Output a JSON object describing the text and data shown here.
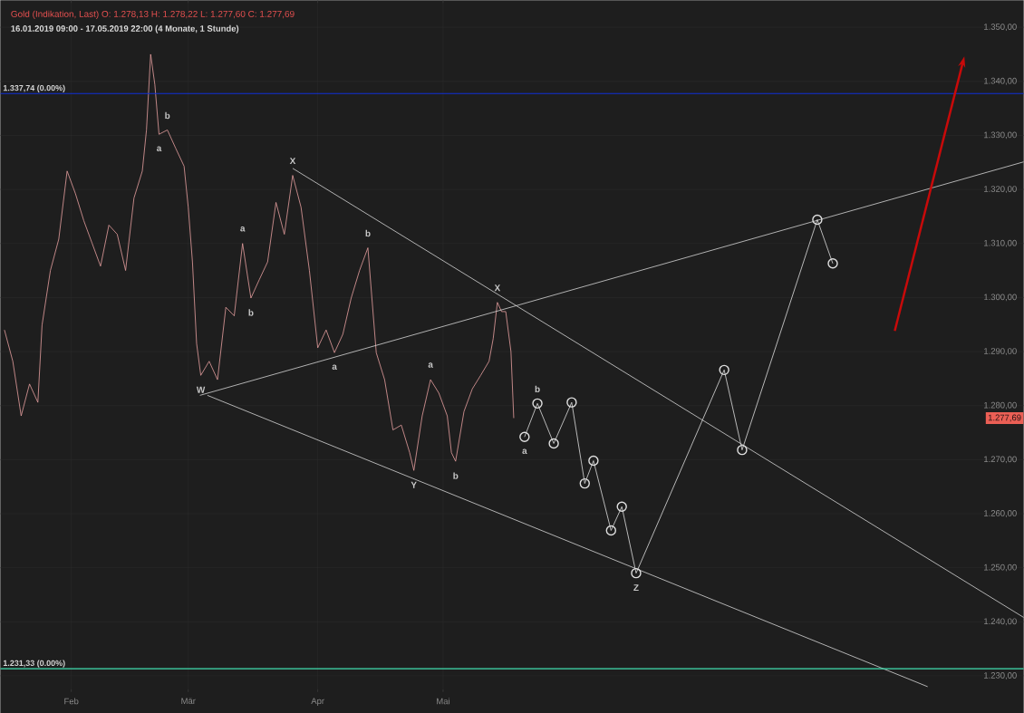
{
  "chart_data": {
    "type": "line",
    "title": "Gold (Indikation, Last)  O: 1.278,13  H: 1.278,22  L: 1.277,60  C: 1.277,69",
    "subtitle": "16.01.2019 09:00 - 17.05.2019 22:00  (4 Monate, 1 Stunde)",
    "xlim": [
      "2019-01-15",
      "2019-09-17"
    ],
    "xticks": [
      {
        "value": "2019-02-01",
        "label": "Feb"
      },
      {
        "value": "2019-03-01",
        "label": "Mär"
      },
      {
        "value": "2019-04-01",
        "label": "Apr"
      },
      {
        "value": "2019-05-01",
        "label": "Mai"
      }
    ],
    "ylim": [
      1227,
      1355
    ],
    "yticks": [
      {
        "value": 1230,
        "label": "1.230,00"
      },
      {
        "value": 1240,
        "label": "1.240,00"
      },
      {
        "value": 1250,
        "label": "1.250,00"
      },
      {
        "value": 1260,
        "label": "1.260,00"
      },
      {
        "value": 1270,
        "label": "1.270,00"
      },
      {
        "value": 1280,
        "label": "1.280,00"
      },
      {
        "value": 1290,
        "label": "1.290,00"
      },
      {
        "value": 1300,
        "label": "1.300,00"
      },
      {
        "value": 1310,
        "label": "1.310,00"
      },
      {
        "value": 1320,
        "label": "1.320,00"
      },
      {
        "value": 1330,
        "label": "1.330,00"
      },
      {
        "value": 1340,
        "label": "1.340,00"
      },
      {
        "value": 1350,
        "label": "1.350,00"
      }
    ],
    "grid": true,
    "series": [
      {
        "color": "#e8a0a0",
        "marker": "none",
        "x": [
          "2019-01-16",
          "2019-01-18",
          "2019-01-20",
          "2019-01-22",
          "2019-01-24",
          "2019-01-25",
          "2019-01-27",
          "2019-01-29",
          "2019-01-31",
          "2019-02-02",
          "2019-02-04",
          "2019-02-06",
          "2019-02-08",
          "2019-02-10",
          "2019-02-12",
          "2019-02-14",
          "2019-02-16",
          "2019-02-18",
          "2019-02-19",
          "2019-02-20",
          "2019-02-21",
          "2019-02-22",
          "2019-02-24",
          "2019-02-26",
          "2019-02-28",
          "2019-03-01",
          "2019-03-02",
          "2019-03-03",
          "2019-03-04",
          "2019-03-06",
          "2019-03-08",
          "2019-03-10",
          "2019-03-12",
          "2019-03-14",
          "2019-03-16",
          "2019-03-18",
          "2019-03-20",
          "2019-03-22",
          "2019-03-24",
          "2019-03-26",
          "2019-03-28",
          "2019-03-30",
          "2019-04-01",
          "2019-04-03",
          "2019-04-05",
          "2019-04-07",
          "2019-04-09",
          "2019-04-11",
          "2019-04-13",
          "2019-04-15",
          "2019-04-17",
          "2019-04-19",
          "2019-04-21",
          "2019-04-23",
          "2019-04-24",
          "2019-04-26",
          "2019-04-28",
          "2019-04-30",
          "2019-05-02",
          "2019-05-03",
          "2019-05-04",
          "2019-05-06",
          "2019-05-08",
          "2019-05-10",
          "2019-05-12",
          "2019-05-13",
          "2019-05-14",
          "2019-05-15",
          "2019-05-16",
          "2019-05-17T06:00",
          "2019-05-17T22:00"
        ],
        "values": [
          1294.0,
          1288.2,
          1278.1,
          1284.0,
          1280.6,
          1294.9,
          1305.0,
          1310.8,
          1323.4,
          1319.2,
          1314.2,
          1310.0,
          1305.8,
          1313.4,
          1311.7,
          1305.0,
          1318.4,
          1323.4,
          1331.0,
          1345.0,
          1339.4,
          1330.2,
          1331.0,
          1327.6,
          1324.3,
          1316.7,
          1306.6,
          1291.5,
          1285.6,
          1288.2,
          1284.8,
          1298.2,
          1296.6,
          1310.0,
          1299.9,
          1303.3,
          1306.6,
          1317.6,
          1311.7,
          1322.6,
          1316.7,
          1305.0,
          1290.7,
          1294.0,
          1289.8,
          1293.2,
          1299.9,
          1305.0,
          1309.2,
          1289.8,
          1284.8,
          1275.5,
          1276.4,
          1271.3,
          1268.0,
          1278.1,
          1284.8,
          1282.3,
          1278.1,
          1271.3,
          1269.7,
          1278.9,
          1283.1,
          1285.6,
          1288.2,
          1292.4,
          1299.1,
          1297.4,
          1297.4,
          1290.0,
          1277.69
        ]
      },
      {
        "color": "#d8d8d8",
        "marker": "none",
        "x": [
          "2019-03-03T19:00",
          "2019-09-17"
        ],
        "values": [
          1281.9,
          1325.1
        ]
      },
      {
        "color": "#d8d8d8",
        "marker": "none",
        "x": [
          "2019-03-26",
          "2019-09-17"
        ],
        "values": [
          1323.9,
          1240.8
        ]
      },
      {
        "color": "#d8d8d8",
        "marker": "none",
        "x": [
          "2019-03-05T14:00",
          "2019-08-25"
        ],
        "values": [
          1281.9,
          1228.0
        ]
      },
      {
        "color": "#e0e0e0",
        "marker": "circle",
        "x": [
          "2019-05-20T12:00",
          "2019-05-23T14:00",
          "2019-05-27T12:00",
          "2019-05-31T19:00",
          "2019-06-03T22:00",
          "2019-06-06",
          "2019-06-10T05:00",
          "2019-06-12T19:00",
          "2019-06-16T05:00",
          "2019-07-07T07:00",
          "2019-07-11T14:00",
          "2019-07-29T14:00",
          "2019-08-02T07:00"
        ],
        "values": [
          1274.2,
          1280.4,
          1273.0,
          1280.6,
          1265.6,
          1269.8,
          1256.9,
          1261.3,
          1249.0,
          1286.6,
          1271.8,
          1314.4,
          1306.3
        ]
      }
    ],
    "ref_lines": [
      {
        "axis": "y",
        "value": 1337.74,
        "label": "1.337,74 (0.00%)",
        "color": "#1030d8"
      },
      {
        "axis": "y",
        "value": 1231.33,
        "label": "1.231,33 (0.00%)",
        "color": "#40e0b0"
      }
    ],
    "annotations": [
      {
        "text": "b",
        "x": "2019-02-24",
        "y": 1331.0
      },
      {
        "text": "a",
        "x": "2019-02-22",
        "y": 1330.2
      },
      {
        "text": "X",
        "x": "2019-03-26",
        "y": 1322.6
      },
      {
        "text": "a",
        "x": "2019-03-14",
        "y": 1310.0
      },
      {
        "text": "b",
        "x": "2019-04-13",
        "y": 1309.2
      },
      {
        "text": "b",
        "x": "2019-03-16",
        "y": 1299.9
      },
      {
        "text": "W",
        "x": "2019-03-04",
        "y": 1285.6
      },
      {
        "text": "a",
        "x": "2019-04-05",
        "y": 1289.8
      },
      {
        "text": "a",
        "x": "2019-04-28",
        "y": 1284.8
      },
      {
        "text": "X",
        "x": "2019-05-14",
        "y": 1299.1
      },
      {
        "text": "b",
        "x": "2019-05-23T14:00",
        "y": 1280.4
      },
      {
        "text": "a",
        "x": "2019-05-20T12:00",
        "y": 1274.2
      },
      {
        "text": "Y",
        "x": "2019-04-24",
        "y": 1268.0
      },
      {
        "text": "b",
        "x": "2019-05-04",
        "y": 1269.7
      },
      {
        "text": "Z",
        "x": "2019-06-16T05:00",
        "y": 1249.0
      },
      {
        "text": "1.277,69",
        "y": 1277.69
      }
    ]
  }
}
